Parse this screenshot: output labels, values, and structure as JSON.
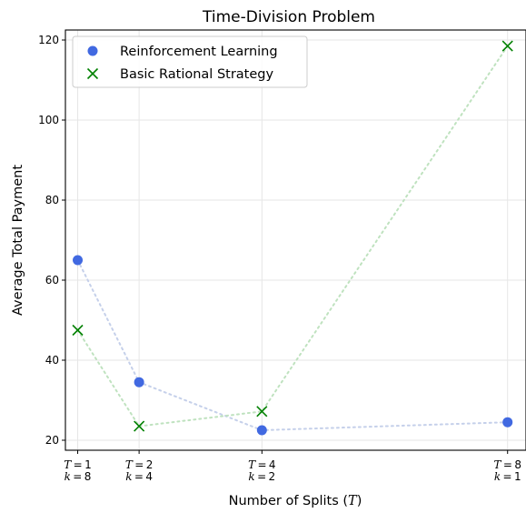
{
  "chart_data": {
    "type": "scatter",
    "title": "Time-Division Problem",
    "xlabel": "Number of Splits (T)",
    "ylabel": "Average Total Payment",
    "x": [
      1,
      2,
      4,
      8
    ],
    "xtick_labels": [
      [
        "T = 1",
        "k = 8"
      ],
      [
        "T = 2",
        "k = 4"
      ],
      [
        "T = 4",
        "k = 2"
      ],
      [
        "T = 8",
        "k = 1"
      ]
    ],
    "xlim": [
      0.8,
      8.3
    ],
    "ylim": [
      17.5,
      122.5
    ],
    "yticks": [
      20,
      40,
      60,
      80,
      100,
      120
    ],
    "grid": true,
    "legend_position": "upper-left",
    "series": [
      {
        "name": "Reinforcement Learning",
        "marker": "circle",
        "color": "#4169e1",
        "line_color": "#c5d0ea",
        "values": [
          65,
          34.5,
          22.5,
          24.5
        ]
      },
      {
        "name": "Basic Rational Strategy",
        "marker": "x",
        "color": "#008000",
        "line_color": "#bfe2bf",
        "values": [
          47.5,
          23.5,
          27.2,
          118.5
        ]
      }
    ]
  }
}
